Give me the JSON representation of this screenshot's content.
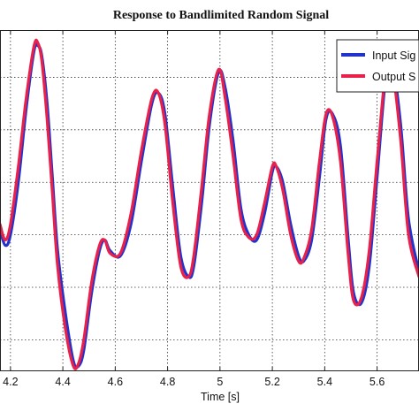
{
  "chart_data": {
    "type": "line",
    "title": "Response to Bandlimited Random Signal",
    "xlabel": "Time [s]",
    "ylabel": "",
    "xlim": [
      4.16,
      5.76
    ],
    "ylim": [
      -3.1,
      3.4
    ],
    "x_ticks": [
      4.2,
      4.4,
      4.6,
      4.8,
      5,
      5.2,
      5.4,
      5.6
    ],
    "x_tick_labels": [
      "4.2",
      "4.4",
      "4.6",
      "4.8",
      "5",
      "5.2",
      "5.4",
      "5.6"
    ],
    "y_gridlines": [
      -2.5,
      -1.5,
      -0.5,
      0.5,
      1.5,
      2.5
    ],
    "grid": true,
    "legend_position": "top-right",
    "series": [
      {
        "name": "Input Sig",
        "color": "#2233cc",
        "x": [
          4.16,
          4.18,
          4.2,
          4.23,
          4.26,
          4.29,
          4.305,
          4.32,
          4.34,
          4.36,
          4.38,
          4.41,
          4.44,
          4.46,
          4.48,
          4.51,
          4.54,
          4.56,
          4.58,
          4.62,
          4.66,
          4.7,
          4.74,
          4.765,
          4.79,
          4.82,
          4.85,
          4.88,
          4.9,
          4.93,
          4.96,
          4.995,
          5.02,
          5.05,
          5.08,
          5.11,
          5.14,
          5.17,
          5.2,
          5.215,
          5.24,
          5.27,
          5.3,
          5.32,
          5.35,
          5.38,
          5.405,
          5.43,
          5.46,
          5.49,
          5.51,
          5.54,
          5.57,
          5.6,
          5.635,
          5.66,
          5.69,
          5.72,
          5.76
        ],
        "values": [
          -0.4,
          -0.7,
          -0.5,
          0.5,
          1.9,
          3.0,
          3.1,
          2.9,
          2.0,
          0.6,
          -0.8,
          -2.0,
          -2.9,
          -3.0,
          -2.7,
          -1.6,
          -0.8,
          -0.6,
          -0.8,
          -0.9,
          -0.3,
          0.9,
          2.0,
          2.2,
          1.8,
          0.4,
          -0.9,
          -1.3,
          -1.1,
          0.1,
          1.6,
          2.6,
          2.3,
          1.3,
          0.0,
          -0.5,
          -0.6,
          -0.1,
          0.7,
          0.8,
          0.5,
          -0.3,
          -0.9,
          -1.0,
          -0.6,
          0.6,
          1.7,
          1.8,
          1.2,
          -0.6,
          -1.6,
          -1.8,
          -1.1,
          0.6,
          2.6,
          2.7,
          1.6,
          -0.2,
          -1.2
        ]
      },
      {
        "name": "Output S",
        "color": "#e8204a",
        "x": [
          4.16,
          4.18,
          4.2,
          4.23,
          4.26,
          4.29,
          4.305,
          4.32,
          4.34,
          4.36,
          4.38,
          4.41,
          4.44,
          4.46,
          4.48,
          4.51,
          4.54,
          4.56,
          4.58,
          4.62,
          4.66,
          4.7,
          4.74,
          4.765,
          4.79,
          4.82,
          4.85,
          4.88,
          4.9,
          4.93,
          4.96,
          4.995,
          5.02,
          5.05,
          5.08,
          5.11,
          5.14,
          5.17,
          5.2,
          5.215,
          5.24,
          5.27,
          5.3,
          5.32,
          5.35,
          5.38,
          5.405,
          5.43,
          5.46,
          5.49,
          5.51,
          5.54,
          5.57,
          5.6,
          5.635,
          5.66,
          5.69,
          5.72,
          5.76
        ],
        "values": [
          -0.3,
          -0.6,
          -0.3,
          0.8,
          2.1,
          3.1,
          3.15,
          2.8,
          1.7,
          0.3,
          -1.1,
          -2.3,
          -3.0,
          -2.95,
          -2.5,
          -1.4,
          -0.7,
          -0.6,
          -0.85,
          -0.85,
          -0.1,
          1.1,
          2.1,
          2.2,
          1.6,
          0.1,
          -1.1,
          -1.3,
          -0.9,
          0.4,
          1.8,
          2.65,
          2.1,
          1.0,
          -0.2,
          -0.55,
          -0.5,
          0.1,
          0.8,
          0.8,
          0.35,
          -0.5,
          -1.0,
          -0.95,
          -0.4,
          0.9,
          1.8,
          1.75,
          0.9,
          -0.9,
          -1.75,
          -1.7,
          -0.8,
          0.9,
          2.7,
          2.6,
          1.3,
          -0.5,
          -1.3
        ]
      }
    ]
  }
}
